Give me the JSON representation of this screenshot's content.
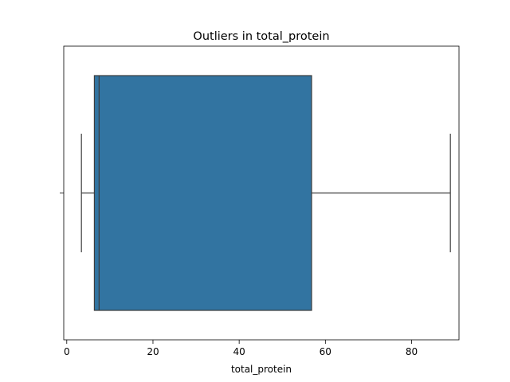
{
  "chart_data": {
    "type": "box",
    "title": "Outliers in total_protein",
    "xlabel": "total_protein",
    "ylabel": "",
    "orientation": "horizontal",
    "xlim": [
      -0.7,
      91
    ],
    "xticks": [
      0,
      20,
      40,
      60,
      80
    ],
    "grid": false,
    "box": {
      "whisker_low": 3.4,
      "q1": 6.4,
      "median": 7.5,
      "q3": 56.8,
      "whisker_high": 89
    },
    "colors": {
      "box_fill": "#3274a1",
      "lines": "#3d3d3d",
      "spine": "#000000"
    }
  }
}
